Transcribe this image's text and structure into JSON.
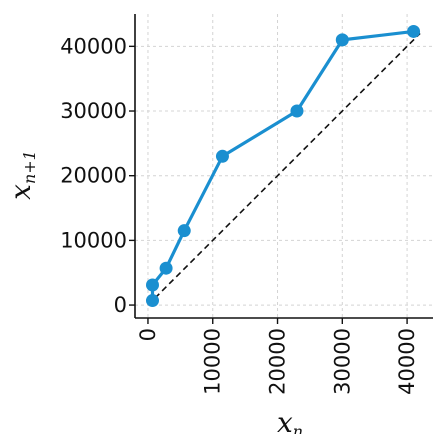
{
  "chart_data": {
    "type": "line",
    "title": "",
    "xlabel": "x",
    "xlabel_sub": "n",
    "ylabel": "x",
    "ylabel_sub": "n+1",
    "xlim": [
      -2000,
      44000
    ],
    "ylim": [
      -2000,
      45000
    ],
    "xticks": [
      0,
      10000,
      20000,
      30000,
      40000
    ],
    "yticks": [
      0,
      10000,
      20000,
      30000,
      40000
    ],
    "x_tick_labels": [
      "0",
      "10000",
      "20000",
      "30000",
      "40000"
    ],
    "y_tick_labels": [
      "0",
      "10000",
      "20000",
      "30000",
      "40000"
    ],
    "grid": true,
    "series": [
      {
        "color": "#1a8fd0",
        "marker": "circle",
        "points": [
          {
            "x": 700,
            "y": 700
          },
          {
            "x": 700,
            "y": 3100
          },
          {
            "x": 2800,
            "y": 5700
          },
          {
            "x": 5600,
            "y": 11500
          },
          {
            "x": 11500,
            "y": 23000
          },
          {
            "x": 23000,
            "y": 30000
          },
          {
            "x": 30000,
            "y": 41000
          },
          {
            "x": 41000,
            "y": 42300
          }
        ]
      }
    ],
    "reference_line": {
      "style": "dashed",
      "color": "#111111",
      "from": [
        0,
        0
      ],
      "to": [
        42000,
        42000
      ]
    }
  }
}
